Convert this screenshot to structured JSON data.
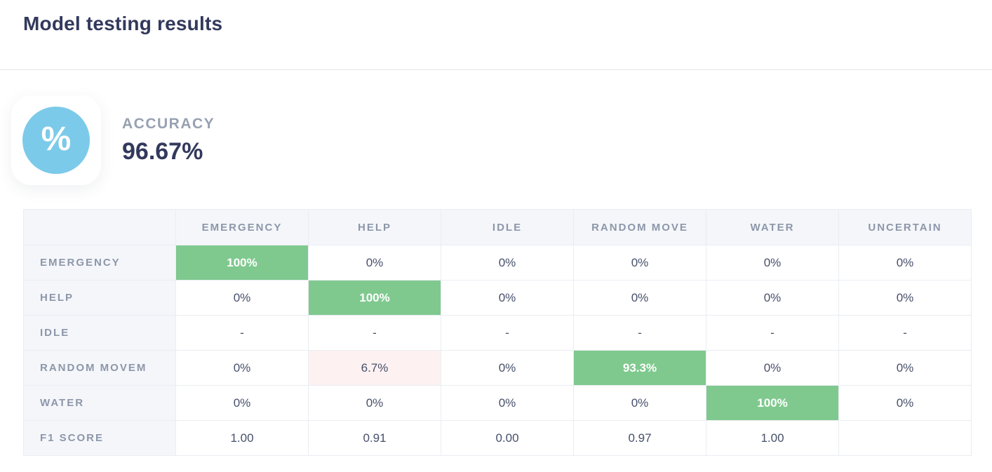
{
  "page": {
    "title": "Model testing results"
  },
  "accuracy": {
    "label": "ACCURACY",
    "value": "96.67%",
    "icon_glyph": "%",
    "icon_name": "percent-icon"
  },
  "matrix": {
    "columns": [
      "EMERGENCY",
      "HELP",
      "IDLE",
      "RANDOM MOVE",
      "WATER",
      "UNCERTAIN"
    ],
    "rows": [
      {
        "label": "EMERGENCY",
        "cells": [
          {
            "text": "100%",
            "style": "green"
          },
          {
            "text": "0%"
          },
          {
            "text": "0%"
          },
          {
            "text": "0%"
          },
          {
            "text": "0%"
          },
          {
            "text": "0%"
          }
        ]
      },
      {
        "label": "HELP",
        "cells": [
          {
            "text": "0%"
          },
          {
            "text": "100%",
            "style": "green"
          },
          {
            "text": "0%"
          },
          {
            "text": "0%"
          },
          {
            "text": "0%"
          },
          {
            "text": "0%"
          }
        ]
      },
      {
        "label": "IDLE",
        "cells": [
          {
            "text": "-"
          },
          {
            "text": "-"
          },
          {
            "text": "-"
          },
          {
            "text": "-"
          },
          {
            "text": "-"
          },
          {
            "text": "-"
          }
        ]
      },
      {
        "label": "RANDOM MOVEM",
        "cells": [
          {
            "text": "0%"
          },
          {
            "text": "6.7%",
            "style": "pink"
          },
          {
            "text": "0%"
          },
          {
            "text": "93.3%",
            "style": "green"
          },
          {
            "text": "0%"
          },
          {
            "text": "0%"
          }
        ]
      },
      {
        "label": "WATER",
        "cells": [
          {
            "text": "0%"
          },
          {
            "text": "0%"
          },
          {
            "text": "0%"
          },
          {
            "text": "0%"
          },
          {
            "text": "100%",
            "style": "green"
          },
          {
            "text": "0%"
          }
        ]
      },
      {
        "label": "F1 SCORE",
        "cells": [
          {
            "text": "1.00"
          },
          {
            "text": "0.91"
          },
          {
            "text": "0.00"
          },
          {
            "text": "0.97"
          },
          {
            "text": "1.00"
          },
          {
            "text": ""
          }
        ]
      }
    ]
  },
  "colors": {
    "title_navy": "#32395c",
    "accent_green": "#7fc98e",
    "accent_pink_bg": "#fdf2f1",
    "icon_blue": "#7ccae9",
    "header_bg": "#f4f6fa",
    "muted_gray": "#8d97a9",
    "border": "#e9edf2"
  }
}
